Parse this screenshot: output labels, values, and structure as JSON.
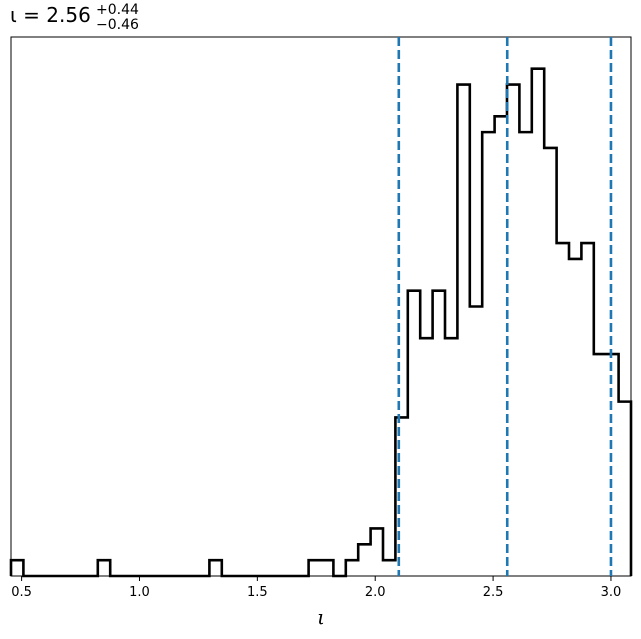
{
  "chart_data": {
    "type": "histogram",
    "title": {
      "symbol": "ι",
      "equals": " = ",
      "value": "2.56",
      "upper": "+0.44",
      "lower": "−0.46"
    },
    "xlabel": "ι",
    "ylabel": "",
    "xlim": [
      0.455,
      3.085
    ],
    "ylim": [
      0,
      34
    ],
    "grid": false,
    "x_ticks": [
      {
        "value": 0.5,
        "label": "0.5"
      },
      {
        "value": 1.0,
        "label": "1.0"
      },
      {
        "value": 1.5,
        "label": "1.5"
      },
      {
        "value": 2.0,
        "label": "2.0"
      },
      {
        "value": 2.5,
        "label": "2.5"
      },
      {
        "value": 3.0,
        "label": "3.0"
      }
    ],
    "bin_edges": [
      0.455,
      0.5076,
      0.5602,
      0.6128,
      0.6654,
      0.718,
      0.7706,
      0.8232,
      0.8758,
      0.9284,
      0.981,
      1.0336,
      1.0862,
      1.1388,
      1.1914,
      1.244,
      1.2966,
      1.3492,
      1.4018,
      1.4544,
      1.507,
      1.5596,
      1.6122,
      1.6648,
      1.7174,
      1.77,
      1.8226,
      1.8752,
      1.9278,
      1.9804,
      2.033,
      2.0856,
      2.1382,
      2.1908,
      2.2434,
      2.296,
      2.3486,
      2.4012,
      2.4538,
      2.5064,
      2.559,
      2.6116,
      2.6642,
      2.7168,
      2.7694,
      2.822,
      2.8746,
      2.9272,
      2.9798,
      3.0324,
      3.085
    ],
    "counts": [
      1,
      0,
      0,
      0,
      0,
      0,
      0,
      1,
      0,
      0,
      0,
      0,
      0,
      0,
      0,
      0,
      1,
      0,
      0,
      0,
      0,
      0,
      0,
      0,
      1,
      1,
      0,
      1,
      2,
      3,
      1,
      10,
      18,
      15,
      18,
      15,
      31,
      17,
      28,
      29,
      31,
      28,
      32,
      27,
      21,
      20,
      21,
      14,
      14,
      11
    ],
    "quantile_lines": [
      2.1,
      2.56,
      3.0
    ],
    "colors": {
      "histogram": "#000000",
      "quantile_lines": "#1f77b4"
    }
  }
}
